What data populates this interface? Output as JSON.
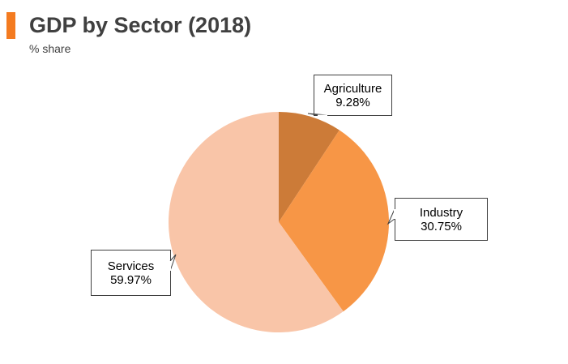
{
  "header": {
    "title": "GDP by Sector (2018)",
    "subtitle": "% share",
    "accent_color": "#f47b20"
  },
  "chart_data": {
    "type": "pie",
    "title": "GDP by Sector (2018)",
    "subtitle": "% share",
    "legend": "none",
    "data_labels": "callouts",
    "slices": [
      {
        "label": "Agriculture",
        "value": 9.28,
        "value_label": "9.28%",
        "color": "#cc7b38"
      },
      {
        "label": "Industry",
        "value": 30.75,
        "value_label": "30.75%",
        "color": "#f79646"
      },
      {
        "label": "Services",
        "value": 59.97,
        "value_label": "59.97%",
        "color": "#f9c5a8"
      }
    ]
  }
}
